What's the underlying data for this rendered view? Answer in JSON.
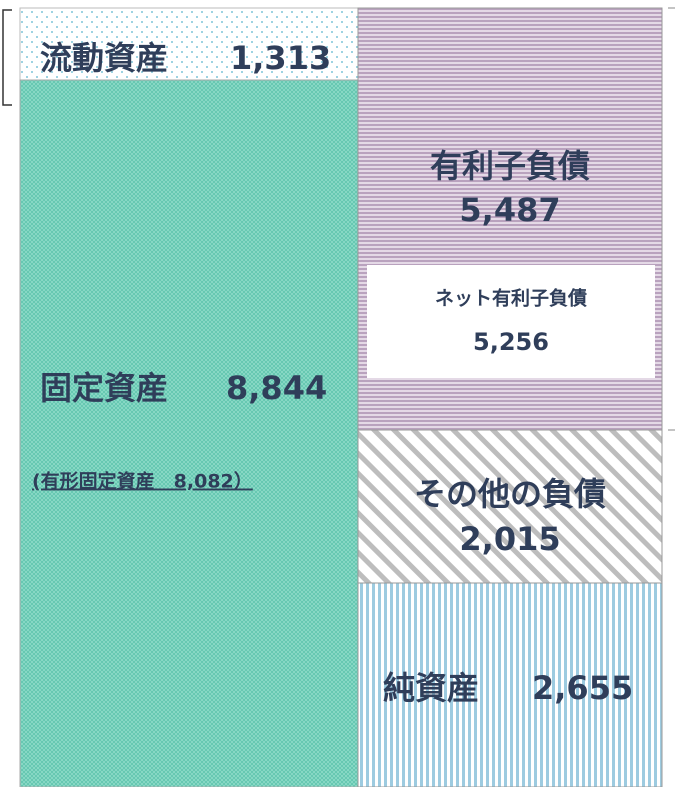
{
  "assets": {
    "current": {
      "label": "流動資産",
      "value": "1,313"
    },
    "fixed": {
      "label": "固定資産",
      "value": "8,844",
      "note": "(有形固定資産　8,082）"
    }
  },
  "liabilities": {
    "interest_bearing": {
      "label": "有利子負債",
      "value": "5,487"
    },
    "net_interest_bearing": {
      "label": "ネット有利子負債",
      "value": "5,256"
    },
    "other": {
      "label": "その他の負債",
      "value": "2,015"
    }
  },
  "equity": {
    "label": "純資産",
    "value": "2,655"
  }
}
